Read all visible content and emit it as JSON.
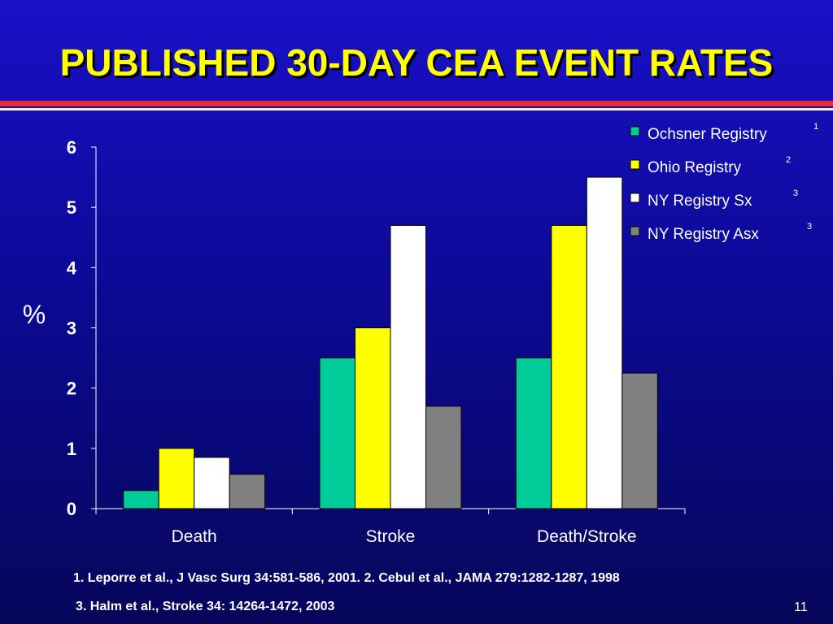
{
  "slide": {
    "title": "PUBLISHED 30-DAY CEA EVENT RATES",
    "footnotes": [
      "1. Leporre et al., J Vasc Surg 34:581-586, 2001.  2. Cebul et al., JAMA 279:1282-1287, 1998",
      "3. Halm et al., Stroke 34: 14264-1472, 2003"
    ],
    "slide_number": "11"
  },
  "chart_data": {
    "type": "bar",
    "title": "",
    "xlabel": "",
    "ylabel": "%",
    "ylim": [
      0,
      6
    ],
    "yticks": [
      0,
      1,
      2,
      3,
      4,
      5,
      6
    ],
    "categories": [
      "Death",
      "Stroke",
      "Death/Stroke"
    ],
    "series": [
      {
        "name": "Ochsner Registry",
        "superscript": "1",
        "color": "#00cc99",
        "values": [
          0.3,
          2.5,
          2.5
        ]
      },
      {
        "name": "Ohio Registry",
        "superscript": "2",
        "color": "#ffff00",
        "values": [
          1.0,
          3.0,
          4.7
        ]
      },
      {
        "name": "NY Registry Sx",
        "superscript": "3",
        "color": "#ffffff",
        "values": [
          0.85,
          4.7,
          5.5
        ]
      },
      {
        "name": "NY Registry Asx",
        "superscript": "3",
        "color": "#808080",
        "values": [
          0.57,
          1.7,
          2.25
        ]
      }
    ],
    "legend_position": "top-right",
    "grid": false
  }
}
